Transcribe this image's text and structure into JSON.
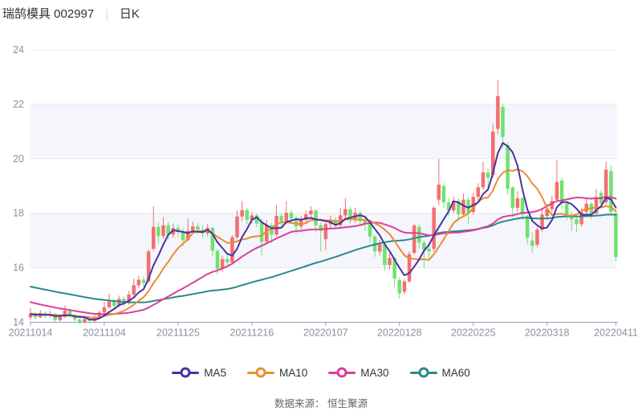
{
  "header": {
    "title": "瑞鹄模具 002997",
    "separator": "|",
    "period": "日K"
  },
  "footer": {
    "source": "数据来源： 恒生聚源"
  },
  "chart_data": {
    "type": "candlestick",
    "title": "瑞鹄模具 002997 日K",
    "ylim": [
      14,
      24
    ],
    "y_ticks": [
      14,
      16,
      18,
      20,
      22,
      24
    ],
    "x_tick_labels": [
      "20211014",
      "20211104",
      "20211125",
      "20211216",
      "20220107",
      "20220128",
      "20220225",
      "20220318",
      "20220411"
    ],
    "x_tick_indices": [
      0,
      15,
      30,
      45,
      60,
      75,
      90,
      105,
      119
    ],
    "shaded_bands": [
      [
        16,
        18
      ],
      [
        20,
        22
      ]
    ],
    "legend_position": "bottom",
    "grid": true,
    "colors": {
      "up": "#f46e6e",
      "down": "#70e170",
      "band": "#f4f6fb",
      "grid": "#e6e9f2",
      "axis": "#9aa2ae",
      "tick_label": "#8a919e"
    },
    "ma_lines": [
      {
        "label": "MA5",
        "window": 5,
        "color": "#4733a3"
      },
      {
        "label": "MA10",
        "window": 10,
        "color": "#ec8b35"
      },
      {
        "label": "MA30",
        "window": 30,
        "color": "#dc3e9c"
      },
      {
        "label": "MA60",
        "window": 60,
        "color": "#2a898c"
      }
    ],
    "ma_seed_closes": [
      16.55,
      16.5,
      16.45,
      16.4,
      16.35,
      16.3,
      16.25,
      16.2,
      16.15,
      16.1,
      16.05,
      16.0,
      15.95,
      15.9,
      15.85,
      15.8,
      15.78,
      15.75,
      15.7,
      15.65,
      15.6,
      15.58,
      15.55,
      15.5,
      15.48,
      15.45,
      15.42,
      15.4,
      15.38,
      15.35,
      15.55,
      15.5,
      15.45,
      15.35,
      15.3,
      15.2,
      15.25,
      15.1,
      15.05,
      15.0,
      14.95,
      14.85,
      14.8,
      14.7,
      14.6,
      14.55,
      14.5,
      14.45,
      14.5,
      14.4,
      14.35,
      14.4,
      14.3,
      14.35,
      14.25,
      14.3,
      14.28,
      14.32,
      14.3
    ],
    "candles": [
      [
        14.18,
        14.3,
        14.08,
        14.52
      ],
      [
        14.3,
        14.18,
        14.1,
        14.38
      ],
      [
        14.18,
        14.33,
        14.15,
        14.45
      ],
      [
        14.33,
        14.24,
        14.15,
        14.4
      ],
      [
        14.24,
        14.31,
        14.18,
        14.42
      ],
      [
        14.31,
        14.08,
        13.98,
        14.35
      ],
      [
        14.08,
        14.2,
        14.02,
        14.3
      ],
      [
        14.2,
        14.43,
        14.15,
        14.62
      ],
      [
        14.43,
        14.26,
        14.18,
        14.5
      ],
      [
        14.26,
        14.1,
        13.98,
        14.32
      ],
      [
        14.1,
        14.0,
        13.92,
        14.18
      ],
      [
        14.0,
        14.12,
        13.96,
        14.22
      ],
      [
        14.12,
        14.05,
        13.95,
        14.2
      ],
      [
        14.05,
        14.18,
        14.0,
        14.28
      ],
      [
        14.18,
        14.36,
        14.12,
        14.45
      ],
      [
        14.36,
        14.55,
        14.3,
        14.75
      ],
      [
        14.55,
        14.76,
        14.5,
        15.05
      ],
      [
        14.76,
        14.6,
        14.48,
        14.85
      ],
      [
        14.6,
        14.86,
        14.55,
        14.98
      ],
      [
        14.86,
        14.7,
        14.58,
        14.95
      ],
      [
        14.7,
        15.02,
        14.65,
        15.15
      ],
      [
        15.02,
        15.36,
        14.95,
        15.6
      ],
      [
        15.36,
        15.56,
        15.25,
        15.72
      ],
      [
        15.56,
        15.44,
        15.3,
        15.68
      ],
      [
        15.5,
        16.6,
        15.45,
        16.68
      ],
      [
        16.7,
        17.5,
        16.6,
        18.26
      ],
      [
        17.5,
        17.16,
        16.9,
        17.66
      ],
      [
        17.16,
        17.56,
        17.05,
        17.86
      ],
      [
        17.56,
        17.22,
        17.05,
        17.7
      ],
      [
        17.22,
        17.46,
        17.1,
        17.62
      ],
      [
        17.46,
        17.32,
        17.12,
        17.6
      ],
      [
        17.32,
        17.02,
        16.8,
        17.45
      ],
      [
        17.02,
        17.36,
        16.95,
        17.8
      ],
      [
        17.36,
        17.52,
        17.25,
        17.7
      ],
      [
        17.52,
        17.4,
        17.22,
        17.65
      ],
      [
        17.4,
        17.26,
        17.1,
        17.55
      ],
      [
        17.26,
        17.46,
        17.15,
        17.6
      ],
      [
        17.46,
        16.62,
        16.42,
        17.5
      ],
      [
        16.62,
        15.96,
        15.76,
        16.7
      ],
      [
        15.96,
        16.32,
        15.85,
        16.45
      ],
      [
        16.32,
        16.2,
        16.05,
        16.48
      ],
      [
        16.2,
        17.12,
        16.15,
        17.2
      ],
      [
        17.12,
        17.88,
        17.05,
        18.1
      ],
      [
        17.88,
        18.12,
        17.7,
        18.45
      ],
      [
        18.12,
        17.76,
        17.6,
        18.2
      ],
      [
        17.76,
        17.92,
        17.62,
        18.05
      ],
      [
        17.92,
        17.62,
        17.48,
        18.0
      ],
      [
        17.7,
        16.95,
        16.45,
        17.8
      ],
      [
        16.95,
        17.56,
        16.85,
        17.76
      ],
      [
        17.56,
        17.22,
        16.9,
        17.65
      ],
      [
        17.22,
        17.9,
        17.15,
        18.3
      ],
      [
        17.9,
        17.7,
        17.45,
        18.0
      ],
      [
        17.7,
        18.02,
        17.6,
        18.45
      ],
      [
        18.02,
        17.8,
        17.65,
        18.12
      ],
      [
        17.8,
        17.52,
        17.26,
        17.92
      ],
      [
        17.52,
        17.76,
        17.4,
        17.9
      ],
      [
        17.76,
        17.96,
        17.65,
        18.1
      ],
      [
        17.96,
        18.1,
        17.85,
        18.26
      ],
      [
        18.1,
        17.56,
        17.3,
        18.15
      ],
      [
        17.56,
        17.36,
        16.6,
        17.65
      ],
      [
        17.05,
        17.6,
        16.65,
        17.7
      ],
      [
        17.6,
        17.76,
        17.45,
        17.92
      ],
      [
        17.76,
        17.56,
        17.4,
        17.85
      ],
      [
        17.56,
        17.92,
        17.45,
        18.2
      ],
      [
        17.92,
        18.15,
        17.8,
        18.56
      ],
      [
        18.15,
        17.8,
        17.62,
        18.25
      ],
      [
        17.8,
        18.02,
        17.65,
        18.2
      ],
      [
        18.02,
        17.76,
        17.55,
        18.1
      ],
      [
        17.76,
        17.6,
        17.36,
        17.92
      ],
      [
        17.6,
        17.15,
        16.92,
        17.66
      ],
      [
        17.15,
        16.6,
        16.4,
        17.2
      ],
      [
        16.6,
        16.86,
        16.45,
        17.02
      ],
      [
        16.86,
        16.1,
        15.9,
        16.9
      ],
      [
        16.1,
        16.36,
        15.95,
        16.55
      ],
      [
        16.36,
        15.6,
        15.3,
        16.4
      ],
      [
        15.55,
        15.06,
        14.86,
        15.65
      ],
      [
        15.12,
        15.5,
        15.02,
        15.58
      ],
      [
        15.5,
        16.5,
        15.45,
        16.6
      ],
      [
        16.55,
        17.55,
        16.5,
        17.62
      ],
      [
        17.5,
        16.92,
        16.7,
        17.6
      ],
      [
        16.92,
        16.66,
        16.0,
        17.0
      ],
      [
        16.7,
        16.6,
        16.3,
        16.85
      ],
      [
        16.7,
        18.2,
        16.6,
        18.26
      ],
      [
        18.5,
        19.05,
        18.3,
        20.0
      ],
      [
        19.0,
        18.4,
        18.2,
        19.1
      ],
      [
        18.4,
        18.1,
        17.9,
        18.55
      ],
      [
        18.1,
        18.46,
        18.0,
        18.62
      ],
      [
        18.46,
        17.96,
        17.7,
        18.55
      ],
      [
        17.96,
        18.5,
        17.9,
        18.72
      ],
      [
        18.5,
        18.0,
        17.6,
        18.58
      ],
      [
        18.05,
        18.6,
        17.95,
        18.76
      ],
      [
        18.6,
        18.95,
        18.4,
        19.1
      ],
      [
        18.95,
        19.5,
        18.85,
        19.9
      ],
      [
        19.5,
        19.3,
        18.9,
        19.65
      ],
      [
        19.4,
        21.0,
        19.3,
        21.3
      ],
      [
        21.1,
        22.3,
        20.9,
        22.88
      ],
      [
        21.9,
        20.8,
        20.4,
        22.0
      ],
      [
        20.5,
        18.9,
        18.7,
        20.6
      ],
      [
        18.95,
        18.2,
        17.85,
        19.0
      ],
      [
        18.2,
        18.55,
        18.05,
        18.8
      ],
      [
        18.55,
        17.95,
        17.75,
        18.6
      ],
      [
        17.9,
        17.1,
        16.85,
        17.95
      ],
      [
        17.0,
        16.8,
        16.55,
        17.3
      ],
      [
        16.85,
        17.4,
        16.75,
        17.5
      ],
      [
        17.4,
        17.95,
        17.3,
        18.2
      ],
      [
        17.9,
        18.15,
        17.75,
        18.35
      ],
      [
        18.15,
        18.45,
        18.05,
        18.65
      ],
      [
        18.5,
        19.15,
        18.45,
        19.95
      ],
      [
        19.2,
        18.35,
        18.15,
        19.3
      ],
      [
        18.35,
        17.95,
        17.75,
        18.45
      ],
      [
        17.95,
        17.78,
        17.35,
        18.05
      ],
      [
        17.78,
        17.6,
        17.3,
        17.9
      ],
      [
        17.6,
        18.05,
        17.5,
        18.2
      ],
      [
        18.05,
        18.35,
        17.95,
        18.55
      ],
      [
        18.35,
        17.95,
        17.8,
        18.42
      ],
      [
        18.0,
        18.6,
        17.95,
        18.9
      ],
      [
        18.75,
        18.35,
        18.2,
        18.85
      ],
      [
        18.4,
        19.6,
        18.3,
        19.9
      ],
      [
        19.55,
        18.05,
        17.9,
        19.75
      ],
      [
        18.0,
        16.4,
        16.25,
        18.1
      ]
    ]
  }
}
